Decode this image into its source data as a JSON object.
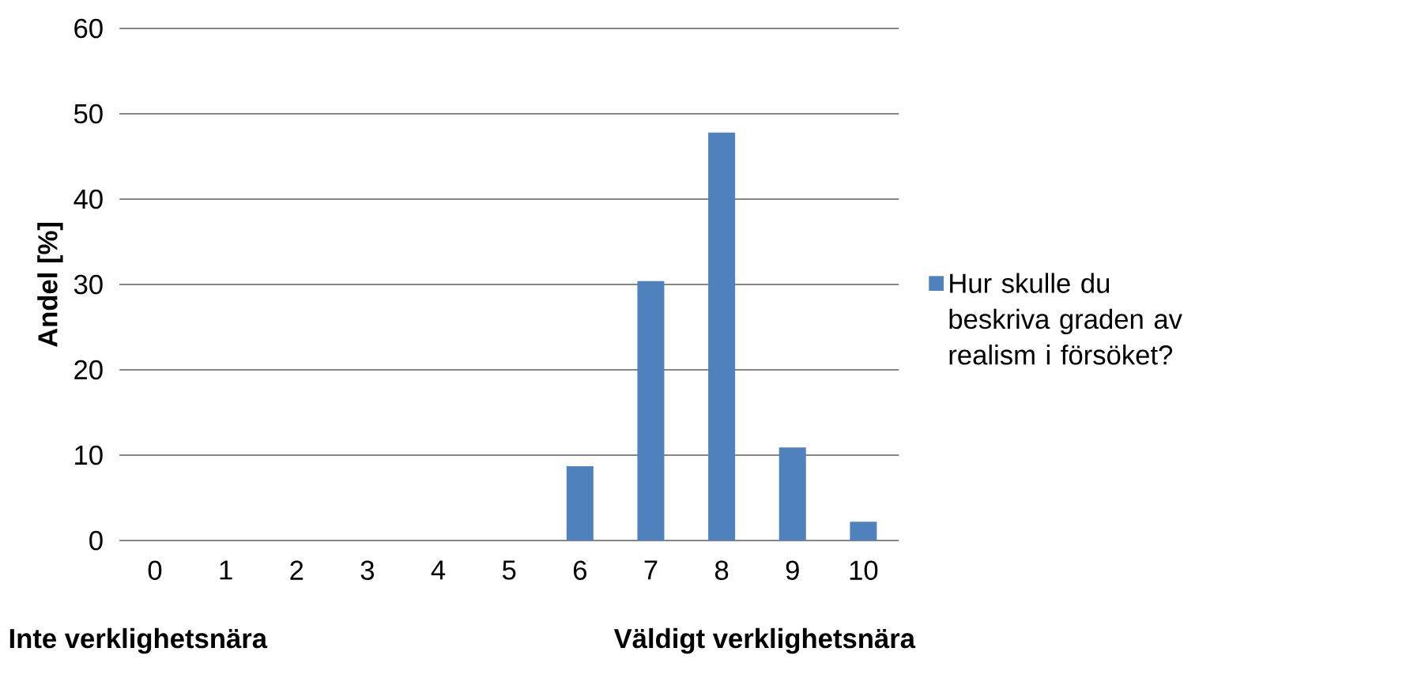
{
  "chart_data": {
    "type": "bar",
    "ylabel": "Andel [%]",
    "categories": [
      "0",
      "1",
      "2",
      "3",
      "4",
      "5",
      "6",
      "7",
      "8",
      "9",
      "10"
    ],
    "series": [
      {
        "name": "Hur skulle du beskriva graden av realism i försöket?",
        "color": "#4f81bd",
        "values": [
          0,
          0,
          0,
          0,
          0,
          0,
          8.7,
          30.4,
          47.8,
          10.9,
          2.2
        ]
      }
    ],
    "ylim": [
      0,
      60
    ],
    "yticks": [
      0,
      10,
      20,
      30,
      40,
      50,
      60
    ],
    "grid": "y",
    "legend": "right",
    "annotations": [
      "Inte verklighetsnära",
      "Väldigt verklighetsnära"
    ]
  }
}
